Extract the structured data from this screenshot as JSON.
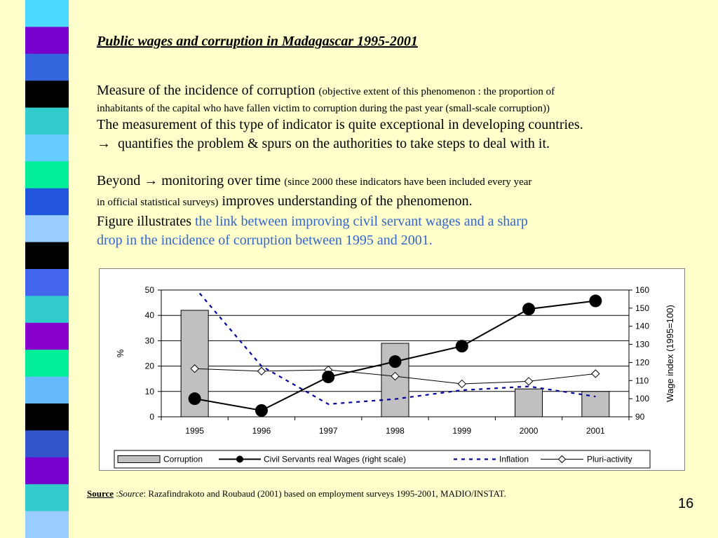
{
  "slide": {
    "title": "Public wages and corruption in Madagascar 1995-2001",
    "p1_main": "Measure of the incidence of corruption",
    "p1_small_a": "(objective extent of this phenomenon : the proportion of",
    "p1_small_b": "inhabitants of the capital who have fallen victim to corruption during the past year (small-scale corruption))",
    "p2": "The measurement of this type of indicator is quite exceptional in developing countries.",
    "p3": "quantifies the problem & spurs on the authorities to take steps to deal with it.",
    "p4_a": "Beyond",
    "p4_b": "monitoring over time",
    "p4_small_a": "(since 2000 these indicators have been included every year",
    "p4_small_b": "in official statistical surveys)",
    "p4_c": "improves understanding of the phenomenon.",
    "p5_a": "Figure illustrates",
    "p5_blue_a": "the link between improving civil servant wages and a sharp",
    "p5_blue_b": "drop in the incidence of corruption between 1995 and 2001.",
    "arrow_glyph": "→",
    "source_label": "Source",
    "source_sep": " :",
    "source_italic": "Source",
    "source_text": ": Razafindrakoto and Roubaud (2001) based on employment surveys 1995-2001, MADIO/INSTAT.",
    "page_number": "16"
  },
  "colors": {
    "background": "#ffffcc",
    "blue_text": "#3366cc",
    "bar_fill": "#c0c0c0",
    "inflation_line": "#000099",
    "stripe": [
      "#4dd9ff",
      "#7700cc",
      "#3366dd",
      "#000000",
      "#33cccc",
      "#66ccff",
      "#00ee99",
      "#2255dd",
      "#99ccff",
      "#000000",
      "#4466ee",
      "#33cccc",
      "#8800cc",
      "#00ee99",
      "#66bbff",
      "#000000",
      "#3355cc",
      "#7700cc",
      "#33cccc",
      "#99ccff"
    ]
  },
  "chart_data": {
    "type": "bar",
    "categories": [
      "1995",
      "1996",
      "1997",
      "1998",
      "1999",
      "2000",
      "2001"
    ],
    "ylabel": "%",
    "y2label": "Wage index (1995=100)",
    "ylim": [
      0,
      50
    ],
    "yticks": [
      "0",
      "10",
      "20",
      "30",
      "40",
      "50"
    ],
    "y2lim": [
      90,
      160
    ],
    "y2ticks": [
      "90",
      "100",
      "110",
      "120",
      "130",
      "140",
      "150",
      "160"
    ],
    "grid": true,
    "legend_position": "bottom",
    "series": [
      {
        "name": "Corruption",
        "kind": "bar",
        "axis": "left",
        "values": [
          42,
          null,
          null,
          29,
          null,
          11,
          10
        ]
      },
      {
        "name": "Civil Servants real Wages (right scale)",
        "kind": "line",
        "marker": "circle",
        "axis": "right",
        "values": [
          100,
          93.5,
          112,
          120.5,
          129,
          149.5,
          154
        ]
      },
      {
        "name": "Inflation",
        "kind": "dashed-line",
        "axis": "left",
        "values": [
          51,
          20,
          5,
          7,
          10.5,
          12,
          8
        ]
      },
      {
        "name": "Pluri-activity",
        "kind": "line",
        "marker": "diamond",
        "axis": "left",
        "values": [
          19,
          18,
          18.5,
          16,
          13,
          14,
          17
        ]
      }
    ]
  }
}
